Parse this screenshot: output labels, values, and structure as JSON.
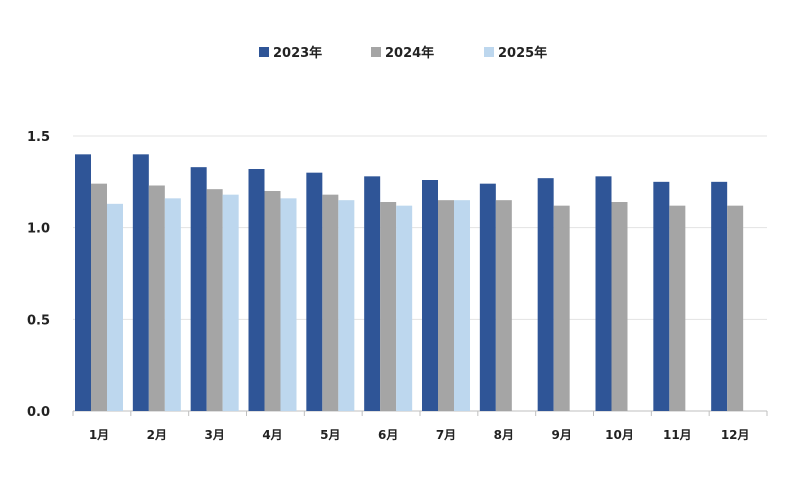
{
  "chart_data": {
    "type": "bar",
    "categories": [
      "1月",
      "2月",
      "3月",
      "4月",
      "5月",
      "6月",
      "7月",
      "8月",
      "9月",
      "10月",
      "11月",
      "12月"
    ],
    "series": [
      {
        "name": "2023年",
        "color": "#2f5597",
        "values": [
          1.4,
          1.4,
          1.33,
          1.32,
          1.3,
          1.28,
          1.26,
          1.24,
          1.27,
          1.28,
          1.25,
          1.25
        ]
      },
      {
        "name": "2024年",
        "color": "#a5a5a5",
        "values": [
          1.24,
          1.23,
          1.21,
          1.2,
          1.18,
          1.14,
          1.15,
          1.15,
          1.12,
          1.14,
          1.12,
          1.12
        ]
      },
      {
        "name": "2025年",
        "color": "#bdd7ee",
        "values": [
          1.13,
          1.16,
          1.18,
          1.16,
          1.15,
          1.12,
          1.15,
          null,
          null,
          null,
          null,
          null
        ]
      }
    ],
    "yticks": [
      "0.0",
      "0.5",
      "1.0",
      "1.5"
    ],
    "ylim": [
      0,
      1.5
    ],
    "legend_position": "top-center",
    "grid": true
  }
}
